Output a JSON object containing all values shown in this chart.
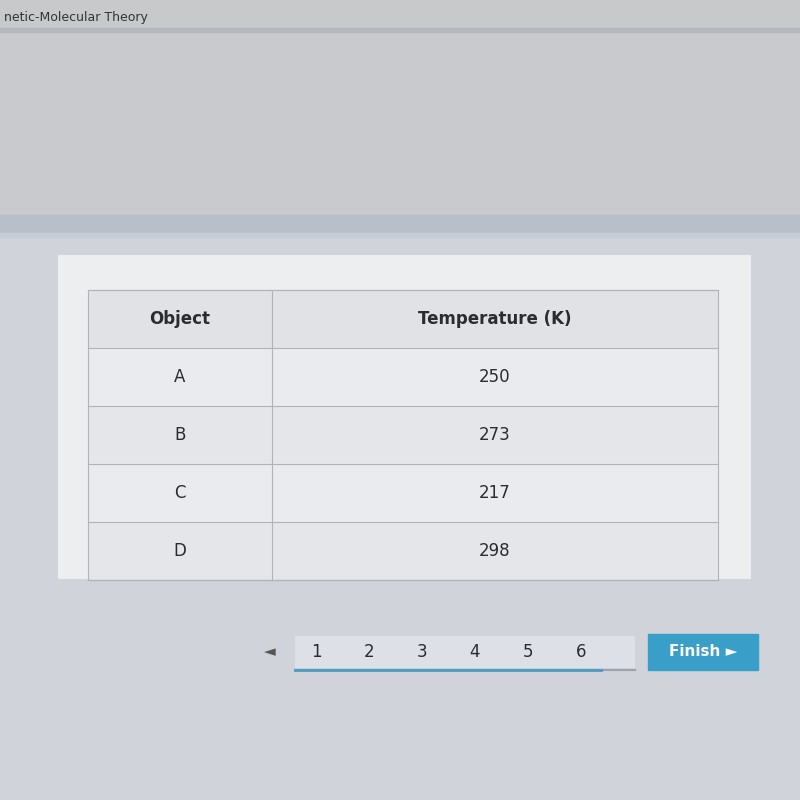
{
  "header_text": "netic-Molecular Theory",
  "col1_header": "Object",
  "col2_header": "Temperature (K)",
  "rows": [
    [
      "A",
      "250"
    ],
    [
      "B",
      "273"
    ],
    [
      "C",
      "217"
    ],
    [
      "D",
      "298"
    ]
  ],
  "nav_numbers": [
    "1",
    "2",
    "3",
    "4",
    "5",
    "6"
  ],
  "finish_text": "Finish ►",
  "bg_header_color": "#c8c9cb",
  "bg_header_line_color": "#b5b8be",
  "bg_upper_color": "#c9cace",
  "bg_separator_color": "#b8bfc9",
  "bg_lower_color": "#d0d3d9",
  "card_color": "#edeef0",
  "table_header_bg": "#e0e2e6",
  "table_row_bg1": "#eaebee",
  "table_row_bg2": "#e4e6ea",
  "table_border_color": "#b0b3b8",
  "nav_box_bg": "#dde0e6",
  "nav_active_color": "#4a9cc0",
  "finish_btn_color": "#3a9fc8",
  "text_color": "#2a2c30",
  "header_text_color": "#333438"
}
